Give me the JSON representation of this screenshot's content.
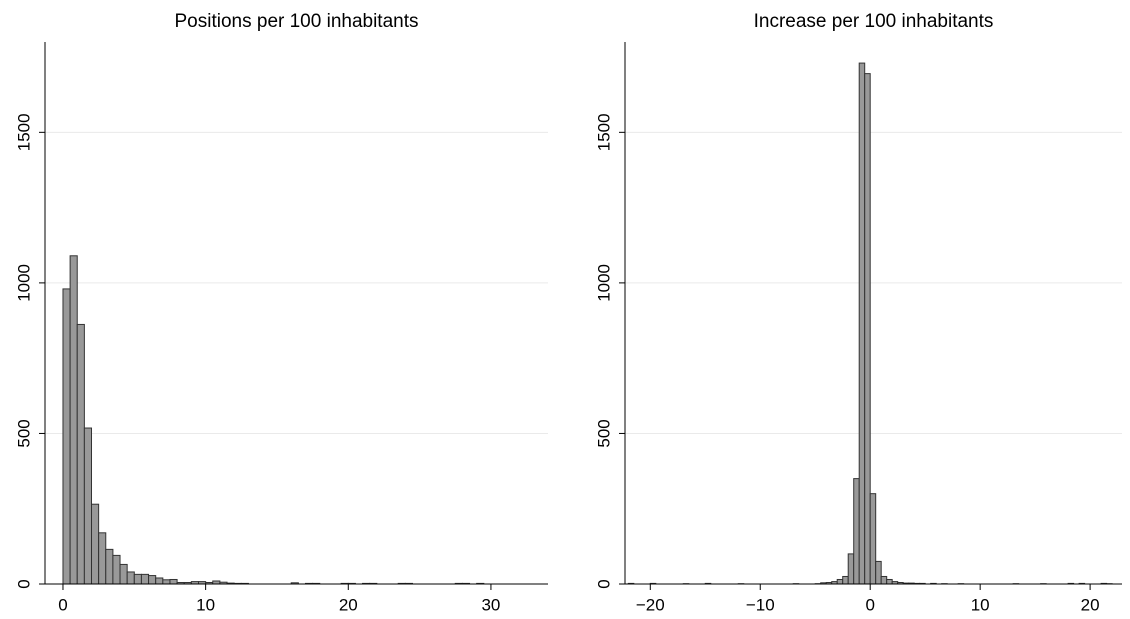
{
  "chart_data": [
    {
      "type": "histogram",
      "title": "Positions per 100 inhabitants",
      "color": "#999999",
      "edgecolor": "#333333",
      "grid": true,
      "bins": [
        0,
        0.5,
        1,
        1.5,
        2,
        2.5,
        3,
        3.5,
        4,
        4.5,
        5,
        5.5,
        6,
        6.5,
        7,
        7.5,
        8,
        8.5,
        9,
        9.5,
        10,
        10.5,
        11,
        11.5,
        12,
        12.5,
        13,
        13.5,
        14,
        14.5,
        15,
        15.5,
        16,
        16.5,
        17,
        17.5,
        18,
        18.5,
        19,
        19.5,
        20,
        20.5,
        21,
        21.5,
        22,
        22.5,
        23,
        23.5,
        24,
        24.5,
        25,
        25.5,
        26,
        26.5,
        27,
        27.5,
        28,
        28.5,
        29,
        29.5
      ],
      "counts": [
        980,
        1090,
        862,
        518,
        265,
        170,
        115,
        95,
        65,
        40,
        32,
        32,
        28,
        20,
        14,
        15,
        5,
        5,
        8,
        8,
        5,
        10,
        6,
        3,
        2,
        2,
        0,
        0,
        0,
        0,
        0,
        0,
        4,
        0,
        2,
        2,
        0,
        0,
        0,
        2,
        2,
        0,
        2,
        2,
        0,
        0,
        0,
        2,
        2,
        0,
        0,
        0,
        0,
        0,
        0,
        2,
        2,
        0,
        2
      ],
      "xlim": [
        -1.26,
        34
      ],
      "ylim": [
        0,
        1800
      ],
      "xticks": [
        0,
        10,
        20,
        30
      ],
      "yticks": [
        0,
        500,
        1000,
        1500
      ]
    },
    {
      "type": "histogram",
      "title": "Increase per 100 inhabitants",
      "color": "#999999",
      "edgecolor": "#333333",
      "grid": true,
      "bins": [
        -22,
        -21.5,
        -21,
        -20.5,
        -20,
        -19.5,
        -19,
        -18.5,
        -18,
        -17.5,
        -17,
        -16.5,
        -16,
        -15.5,
        -15,
        -14.5,
        -14,
        -13.5,
        -13,
        -12.5,
        -12,
        -11.5,
        -11,
        -10.5,
        -10,
        -9.5,
        -9,
        -8.5,
        -8,
        -7.5,
        -7,
        -6.5,
        -6,
        -5.5,
        -5,
        -4.5,
        -4,
        -3.5,
        -3,
        -2.5,
        -2,
        -1.5,
        -1,
        -0.5,
        0,
        0.5,
        1,
        1.5,
        2,
        2.5,
        3,
        3.5,
        4,
        4.5,
        5,
        5.5,
        6,
        6.5,
        7,
        7.5,
        8,
        8.5,
        9,
        9.5,
        10,
        10.5,
        11,
        11.5,
        12,
        12.5,
        13,
        13.5,
        14,
        14.5,
        15,
        15.5,
        16,
        16.5,
        17,
        17.5,
        18,
        18.5,
        19,
        19.5,
        20,
        20.5,
        21,
        21.5,
        22
      ],
      "counts": [
        2,
        0,
        0,
        0,
        2,
        0,
        0,
        0,
        0,
        0,
        1,
        0,
        0,
        0,
        2,
        0,
        0,
        0,
        0,
        0,
        1,
        0,
        0,
        0,
        0,
        0,
        0,
        0,
        0,
        0,
        1,
        0,
        0,
        0,
        1,
        4,
        5,
        8,
        15,
        25,
        100,
        350,
        1730,
        1695,
        300,
        75,
        25,
        15,
        8,
        5,
        3,
        3,
        2,
        2,
        0,
        2,
        0,
        1,
        0,
        0,
        1,
        0,
        0,
        0,
        0,
        0,
        0,
        0,
        0,
        0,
        1,
        0,
        0,
        0,
        0,
        1,
        0,
        0,
        0,
        0,
        2,
        0,
        2,
        0,
        0,
        0,
        2,
        1
      ],
      "xlim": [
        -22.3,
        22.9
      ],
      "ylim": [
        0,
        1800
      ],
      "xticks": [
        {
          "value": -20,
          "label": "−20"
        },
        {
          "value": -10,
          "label": "−10"
        },
        0,
        10,
        20
      ],
      "yticks": [
        0,
        500,
        1000,
        1500
      ]
    }
  ]
}
